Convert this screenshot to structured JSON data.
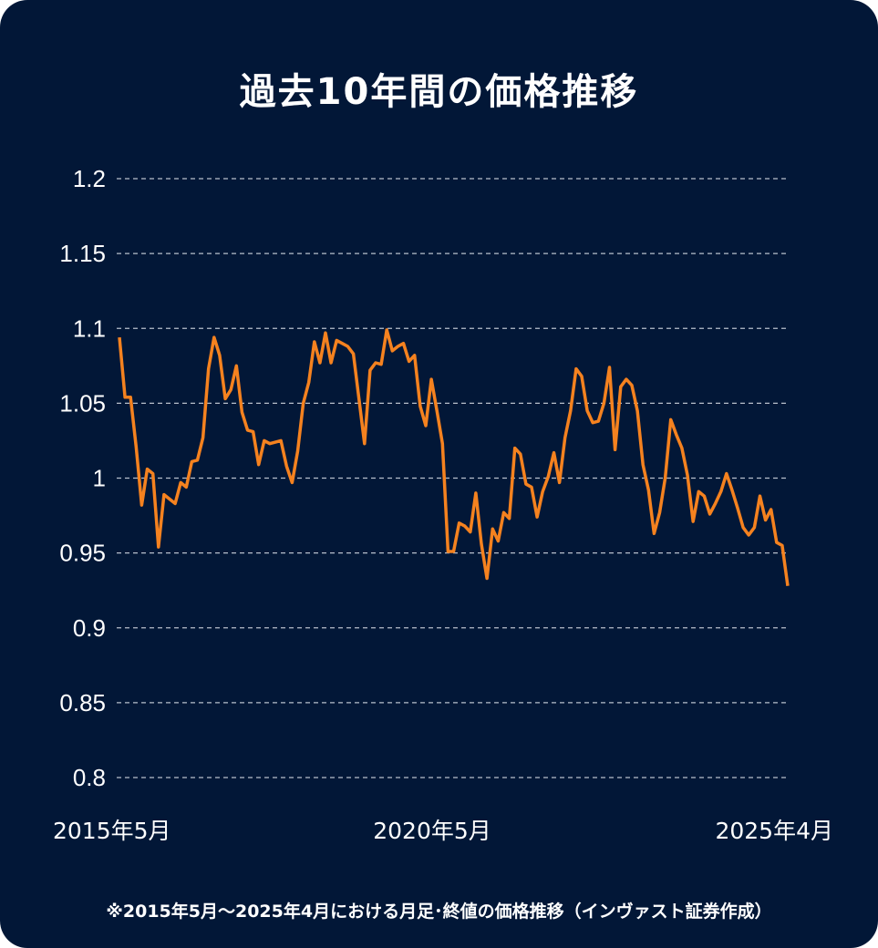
{
  "title": "過去10年間の価格推移",
  "footnote": "※2015年5月～2025年4月における月足･終値の価格推移（インヴァスト証券作成）",
  "chart_data": {
    "type": "line",
    "title": "過去10年間の価格推移",
    "xlabel": "",
    "ylabel": "",
    "x_tick_labels": [
      "2015年5月",
      "2020年5月",
      "2025年4月"
    ],
    "x_range": [
      "2015年5月",
      "2025年4月"
    ],
    "y_ticks": [
      1.2,
      1.15,
      1.1,
      1.05,
      1,
      0.95,
      0.9,
      0.85,
      0.8
    ],
    "y_tick_labels": [
      "1.2",
      "1.15",
      "1.1",
      "1.05",
      "1",
      "0.95",
      "0.9",
      "0.85",
      "0.8"
    ],
    "ylim": [
      0.8,
      1.2
    ],
    "grid": "horizontal dashed",
    "line_color": "#f5821f",
    "background_color": "#021737",
    "series": [
      {
        "values": [
          1.094,
          1.054,
          1.054,
          1.021,
          0.982,
          1.006,
          1.003,
          0.954,
          0.989,
          0.986,
          0.983,
          0.997,
          0.994,
          1.011,
          1.012,
          1.027,
          1.073,
          1.094,
          1.082,
          1.053,
          1.059,
          1.075,
          1.044,
          1.032,
          1.031,
          1.009,
          1.025,
          1.023,
          1.024,
          1.025,
          1.008,
          0.997,
          1.018,
          1.05,
          1.064,
          1.091,
          1.077,
          1.097,
          1.077,
          1.092,
          1.09,
          1.088,
          1.083,
          1.053,
          1.023,
          1.072,
          1.077,
          1.076,
          1.099,
          1.085,
          1.088,
          1.09,
          1.078,
          1.082,
          1.048,
          1.035,
          1.066,
          1.045,
          1.023,
          0.951,
          0.951,
          0.97,
          0.968,
          0.964,
          0.99,
          0.956,
          0.933,
          0.966,
          0.958,
          0.977,
          0.973,
          1.02,
          1.016,
          0.996,
          0.994,
          0.974,
          0.991,
          1.001,
          1.017,
          0.997,
          1.027,
          1.045,
          1.073,
          1.068,
          1.045,
          1.037,
          1.038,
          1.05,
          1.074,
          1.019,
          1.061,
          1.066,
          1.062,
          1.045,
          1.009,
          0.992,
          0.963,
          0.977,
          1.0,
          1.039,
          1.029,
          1.02,
          1.002,
          0.971,
          0.991,
          0.988,
          0.976,
          0.983,
          0.991,
          1.003,
          0.992,
          0.98,
          0.967,
          0.962,
          0.967,
          0.988,
          0.972,
          0.979,
          0.957,
          0.955,
          0.928
        ]
      }
    ]
  }
}
